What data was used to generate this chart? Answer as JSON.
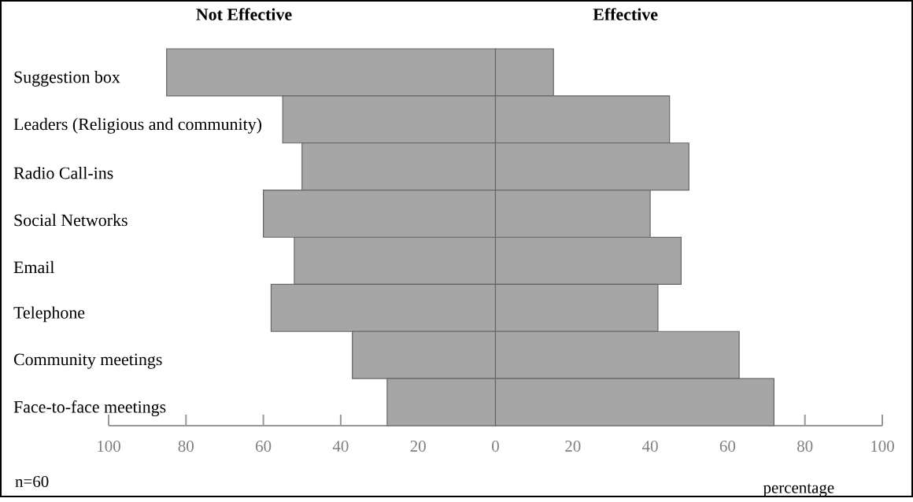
{
  "chart_data": {
    "type": "bar",
    "orientation": "horizontal",
    "stacked": true,
    "categories": [
      "Suggestion box",
      "Leaders (Religious and community)",
      "Radio Call-ins",
      "Social Networks",
      "Email",
      "Telephone",
      "Community meetings",
      "Face-to-face meetings"
    ],
    "series": [
      {
        "name": "Not Effective",
        "color": "#a6a6a6",
        "values": [
          -85,
          -55,
          -50,
          -60,
          -52,
          -58,
          -37,
          -28
        ]
      },
      {
        "name": "Effective",
        "color": "#a6a6a6",
        "values": [
          15,
          45,
          50,
          40,
          48,
          42,
          63,
          72
        ]
      }
    ],
    "xlim": [
      -100,
      100
    ],
    "xticks": [
      {
        "value": -100,
        "label": "100"
      },
      {
        "value": -80,
        "label": "80"
      },
      {
        "value": -60,
        "label": "60"
      },
      {
        "value": -40,
        "label": "40"
      },
      {
        "value": -20,
        "label": "20"
      },
      0,
      20,
      40,
      60,
      80,
      100
    ],
    "xlabel": "percentage",
    "annotations": [
      "n=60"
    ]
  }
}
